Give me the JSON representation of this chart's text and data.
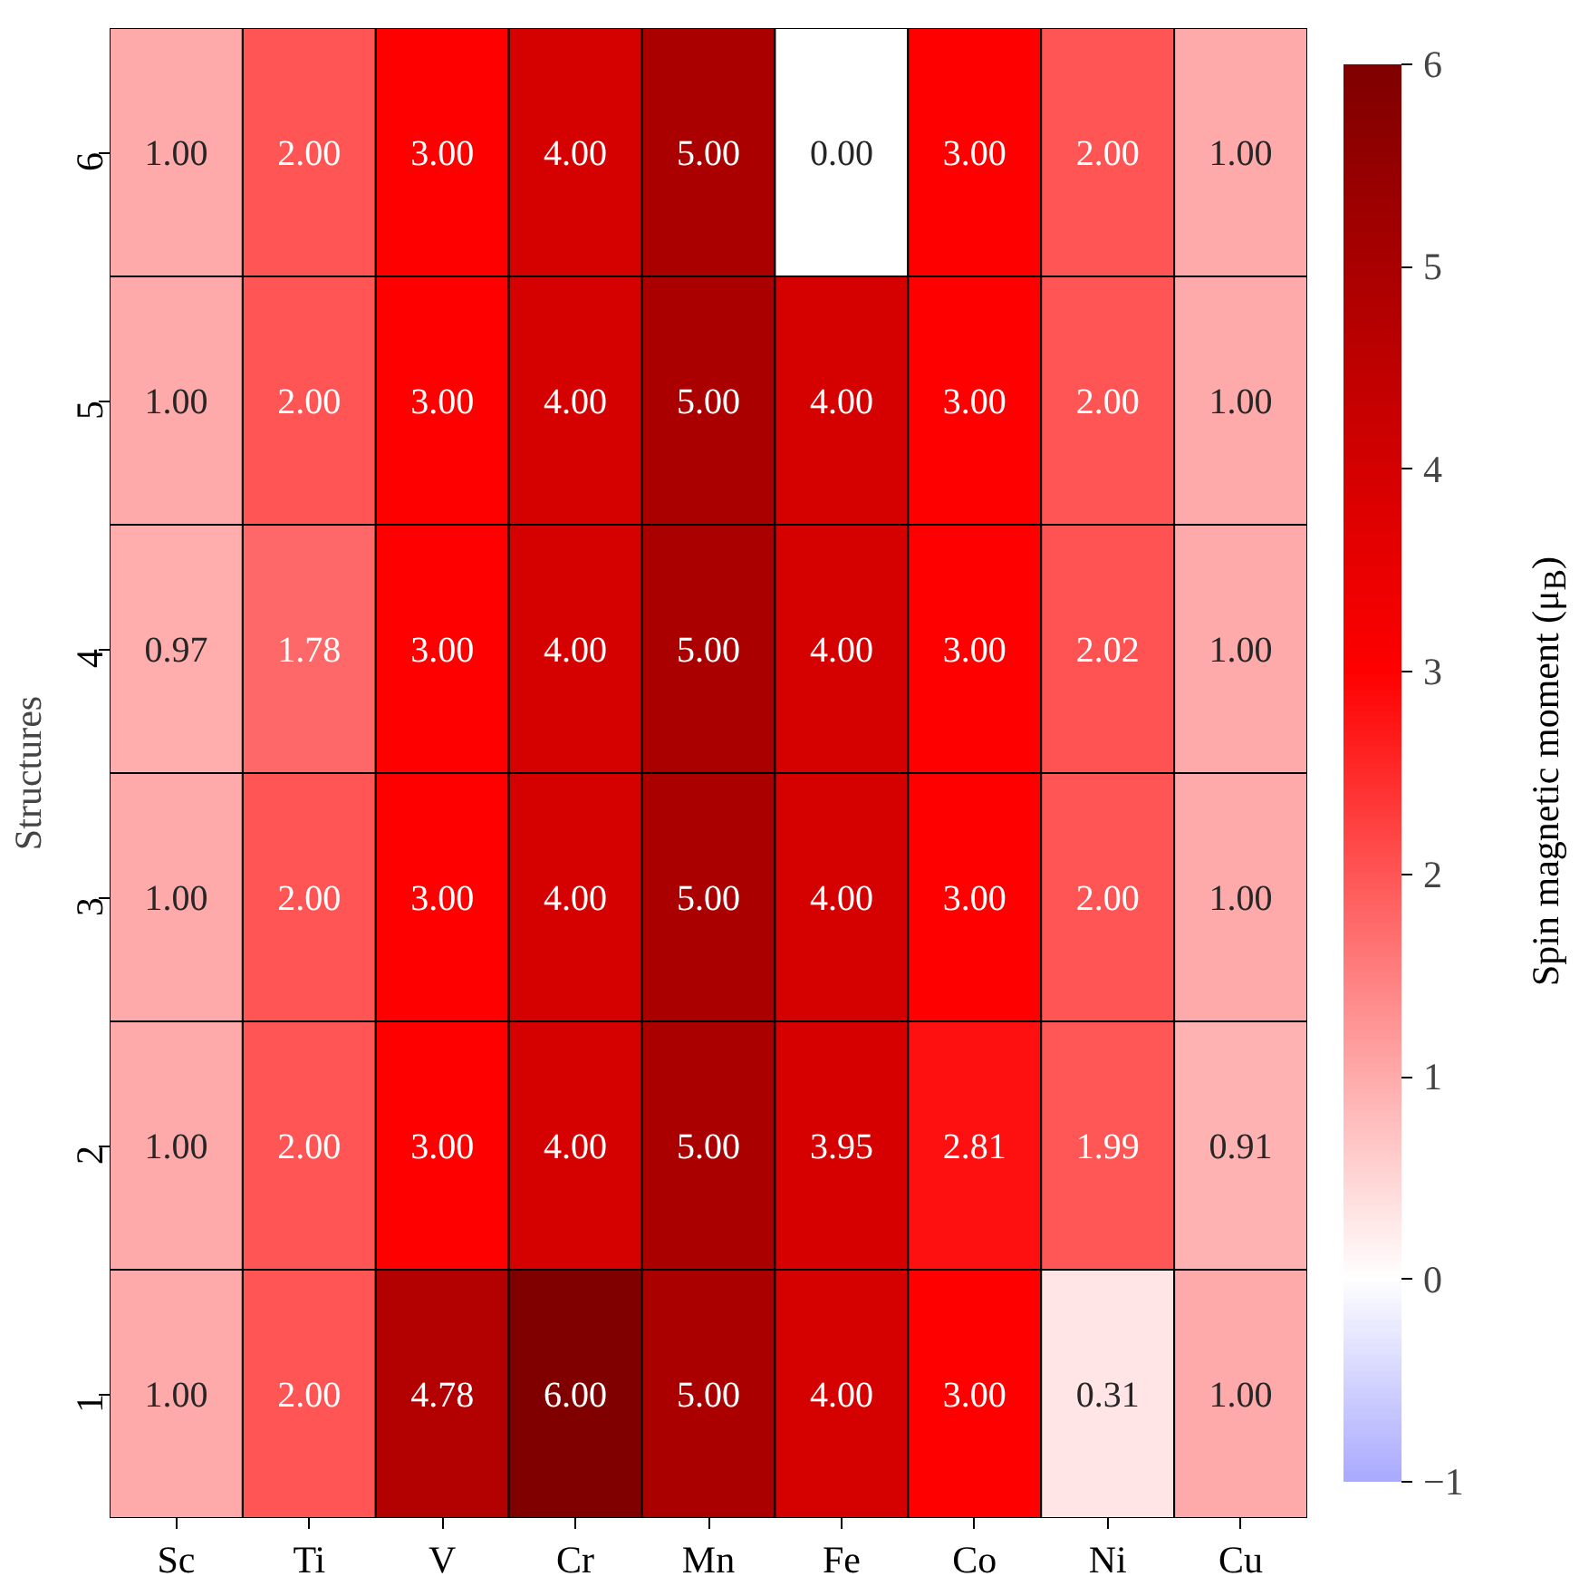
{
  "chart_data": {
    "type": "heatmap",
    "ylabel": "Structures",
    "clabel": "Spin magnetic moment (μ$_{B}$)",
    "categories": [
      "Sc",
      "Ti",
      "V",
      "Cr",
      "Mn",
      "Fe",
      "Co",
      "Ni",
      "Cu"
    ],
    "y_categories": [
      "6",
      "5",
      "4",
      "3",
      "2",
      "1"
    ],
    "cells": [
      [
        1.0,
        2.0,
        3.0,
        4.0,
        5.0,
        0.0,
        3.0,
        2.0,
        1.0
      ],
      [
        1.0,
        2.0,
        3.0,
        4.0,
        5.0,
        4.0,
        3.0,
        2.0,
        1.0
      ],
      [
        0.97,
        1.78,
        3.0,
        4.0,
        5.0,
        4.0,
        3.0,
        2.02,
        1.0
      ],
      [
        1.0,
        2.0,
        3.0,
        4.0,
        5.0,
        4.0,
        3.0,
        2.0,
        1.0
      ],
      [
        1.0,
        2.0,
        3.0,
        4.0,
        5.0,
        3.95,
        2.81,
        1.99,
        0.91
      ],
      [
        1.0,
        2.0,
        4.78,
        6.0,
        5.0,
        4.0,
        3.0,
        0.31,
        1.0
      ]
    ],
    "cell_labels": [
      [
        "1.00",
        "2.00",
        "3.00",
        "4.00",
        "5.00",
        "0.00",
        "3.00",
        "2.00",
        "1.00"
      ],
      [
        "1.00",
        "2.00",
        "3.00",
        "4.00",
        "5.00",
        "4.00",
        "3.00",
        "2.00",
        "1.00"
      ],
      [
        "0.97",
        "1.78",
        "3.00",
        "4.00",
        "5.00",
        "4.00",
        "3.00",
        "2.02",
        "1.00"
      ],
      [
        "1.00",
        "2.00",
        "3.00",
        "4.00",
        "5.00",
        "4.00",
        "3.00",
        "2.00",
        "1.00"
      ],
      [
        "1.00",
        "2.00",
        "3.00",
        "4.00",
        "5.00",
        "3.95",
        "2.81",
        "1.99",
        "0.91"
      ],
      [
        "1.00",
        "2.00",
        "4.78",
        "6.00",
        "5.00",
        "4.00",
        "3.00",
        "0.31",
        "1.00"
      ]
    ],
    "clim": [
      -1,
      6
    ],
    "cticks": [
      -1,
      0,
      1,
      2,
      3,
      4,
      5,
      6
    ]
  }
}
